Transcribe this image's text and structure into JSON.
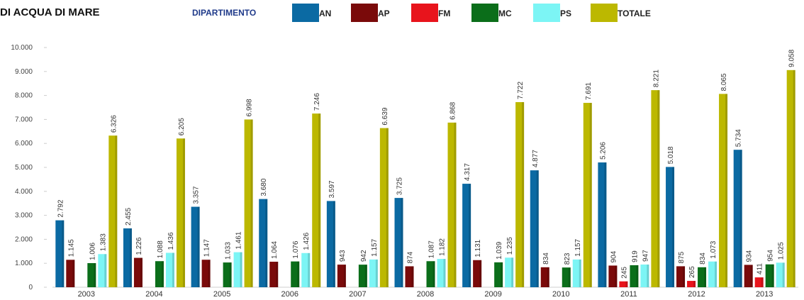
{
  "header": {
    "title": "DI ACQUA DI MARE",
    "legend_caption": "DIPARTIMENTO"
  },
  "chart_data": {
    "type": "bar",
    "categories": [
      "2003",
      "2004",
      "2005",
      "2006",
      "2007",
      "2008",
      "2009",
      "2010",
      "2011",
      "2012",
      "2013"
    ],
    "ylim": [
      0,
      10000
    ],
    "yticks": [
      "0",
      "1.000",
      "2.000",
      "3.000",
      "4.000",
      "5.000",
      "6.000",
      "7.000",
      "8.000",
      "9.000",
      "10.000"
    ],
    "legend_position": "top",
    "series": [
      {
        "name": "AN",
        "color": "#0b6aa3",
        "values": [
          2792,
          2455,
          3357,
          3680,
          3597,
          3725,
          4317,
          4877,
          5206,
          5018,
          5734
        ],
        "labels": [
          "2.792",
          "2.455",
          "3.357",
          "3.680",
          "3.597",
          "3.725",
          "4.317",
          "4.877",
          "5.206",
          "5.018",
          "5.734"
        ]
      },
      {
        "name": "AP",
        "color": "#7a0a0a",
        "values": [
          1145,
          1226,
          1147,
          1064,
          943,
          874,
          1131,
          834,
          904,
          875,
          934
        ],
        "labels": [
          "1.145",
          "1.226",
          "1.147",
          "1.064",
          "943",
          "874",
          "1.131",
          "834",
          "904",
          "875",
          "934"
        ]
      },
      {
        "name": "FM",
        "color": "#e8141c",
        "values": [
          null,
          null,
          null,
          null,
          null,
          null,
          null,
          null,
          245,
          265,
          411
        ],
        "labels": [
          null,
          null,
          null,
          null,
          null,
          null,
          null,
          null,
          "245",
          "265",
          "411"
        ]
      },
      {
        "name": "MC",
        "color": "#0b6e1a",
        "values": [
          1006,
          1088,
          1033,
          1076,
          942,
          1087,
          1039,
          823,
          919,
          834,
          954
        ],
        "labels": [
          "1.006",
          "1.088",
          "1.033",
          "1.076",
          "942",
          "1.087",
          "1.039",
          "823",
          "919",
          "834",
          "954"
        ]
      },
      {
        "name": "PS",
        "color": "#7cf5f5",
        "values": [
          1383,
          1436,
          1461,
          1426,
          1157,
          1182,
          1235,
          1157,
          947,
          1073,
          1025
        ],
        "labels": [
          "1.383",
          "1.436",
          "1.461",
          "1.426",
          "1.157",
          "1.182",
          "1.235",
          "1.157",
          "947",
          "1.073",
          "1.025"
        ]
      },
      {
        "name": "TOTALE",
        "color": "#bcb800",
        "values": [
          6326,
          6205,
          6998,
          7246,
          6639,
          6868,
          7722,
          7691,
          8221,
          8065,
          9058
        ],
        "labels": [
          "6.326",
          "6.205",
          "6.998",
          "7.246",
          "6.639",
          "6.868",
          "7.722",
          "7.691",
          "8.221",
          "8.065",
          "9.058"
        ]
      }
    ]
  }
}
